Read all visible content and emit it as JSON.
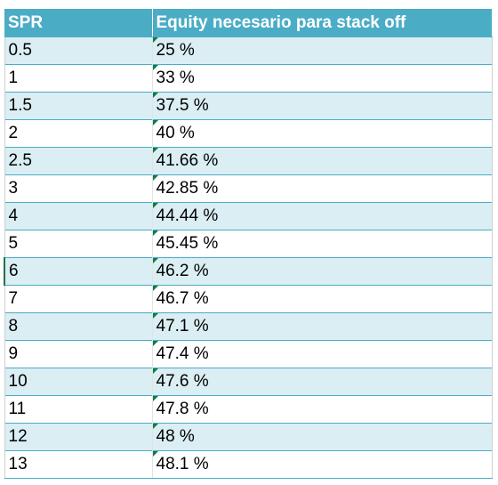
{
  "table": {
    "headers": [
      "SPR",
      "Equity necesario para stack off"
    ],
    "rows": [
      [
        "0.5",
        "25 %"
      ],
      [
        "1",
        "33 %"
      ],
      [
        "1.5",
        "37.5 %"
      ],
      [
        "2",
        "40 %"
      ],
      [
        "2.5",
        "41.66 %"
      ],
      [
        "3",
        "42.85 %"
      ],
      [
        "4",
        "44.44 %"
      ],
      [
        "5",
        "45.45 %"
      ],
      [
        "6",
        "46.2 %"
      ],
      [
        "7",
        "46.7 %"
      ],
      [
        "8",
        "47.1 %"
      ],
      [
        "9",
        "47.4 %"
      ],
      [
        "10",
        "47.6 %"
      ],
      [
        "11",
        "47.8 %"
      ],
      [
        "12",
        "48 %"
      ],
      [
        "13",
        "48.1 %"
      ]
    ]
  },
  "colors": {
    "header_bg": "#4bacc6",
    "band_bg": "#daeef3",
    "indicator": "#107c41"
  },
  "icons": {
    "cell_indicator": "green-triangle-icon"
  }
}
